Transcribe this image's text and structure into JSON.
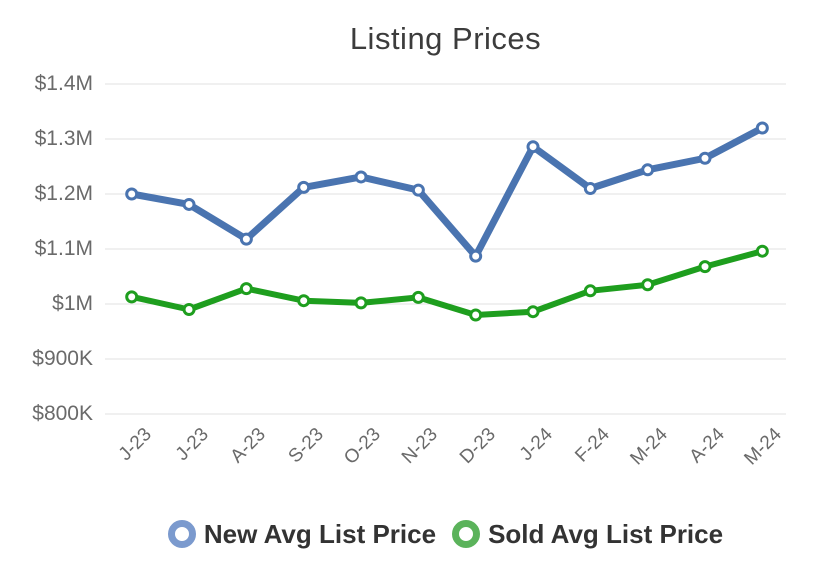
{
  "chart_data": {
    "type": "line",
    "title": "Listing Prices",
    "categories": [
      "J-23",
      "J-23",
      "A-23",
      "S-23",
      "O-23",
      "N-23",
      "D-23",
      "J-24",
      "F-24",
      "M-24",
      "A-24",
      "M-24"
    ],
    "series": [
      {
        "name": "New Avg List Price",
        "color": "#4a74b0",
        "legend_ring_color": "#7b9ace",
        "line_width": 7,
        "values_usd": [
          1200000,
          1181000,
          1118000,
          1212000,
          1231000,
          1207000,
          1087000,
          1286000,
          1210000,
          1244000,
          1265000,
          1320000
        ]
      },
      {
        "name": "Sold Avg List Price",
        "color": "#1e9e1e",
        "legend_ring_color": "#5bb35b",
        "line_width": 6,
        "values_usd": [
          1013000,
          990000,
          1028000,
          1006000,
          1002000,
          1012000,
          980000,
          986000,
          1024000,
          1035000,
          1068000,
          1096000
        ]
      }
    ],
    "y_axis": {
      "min": 800000,
      "max": 1400000,
      "interval": 100000,
      "tick_labels": [
        "$1.4M",
        "$1.3M",
        "$1.2M",
        "$1.1M",
        "$1M",
        "$900K",
        "$800K"
      ]
    },
    "x_axis": {
      "label_rotation_deg": -45
    },
    "legend": {
      "position": "bottom"
    },
    "grid": "horizontal",
    "colors": {
      "gridline": "#e0e0e0",
      "axis_label": "#6a6a6a",
      "title": "#3c3c3c",
      "legend_text": "#333333",
      "marker_fill": "#ffffff",
      "background": "#ffffff"
    }
  }
}
